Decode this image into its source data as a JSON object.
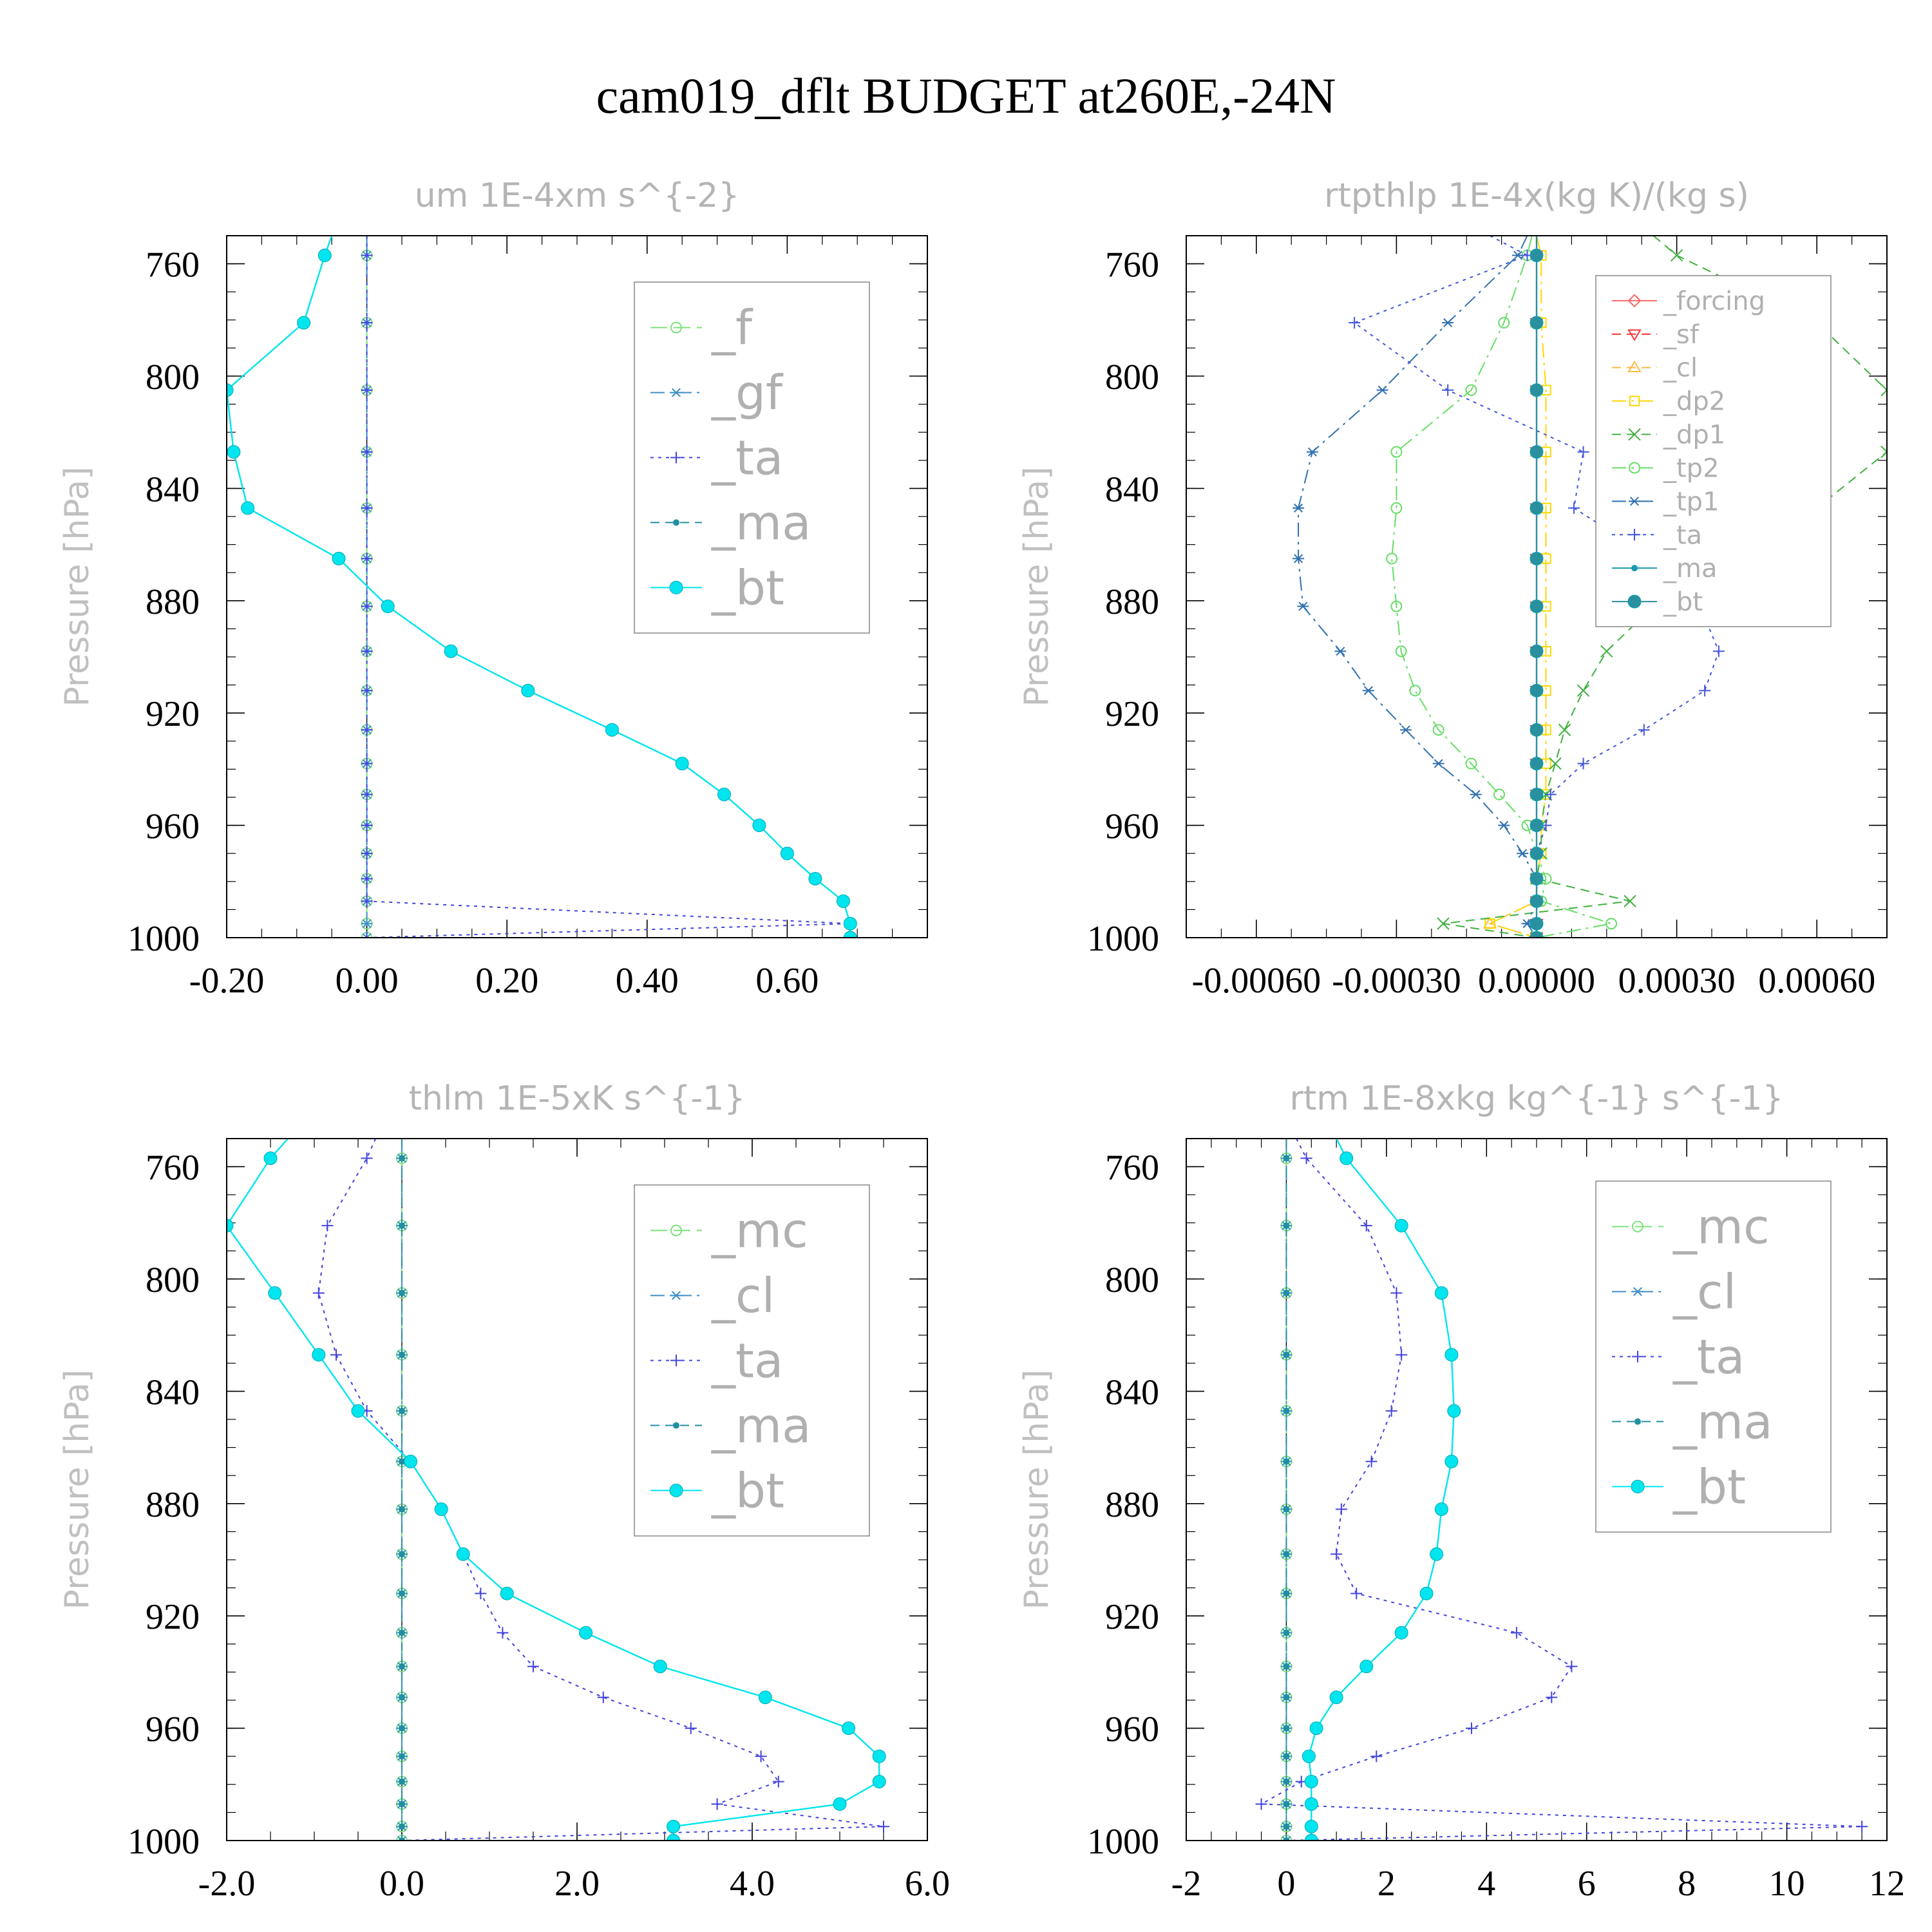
{
  "title": "cam019_dflt  BUDGET at260E,-24N",
  "chart_data": [
    {
      "type": "line",
      "title": "um   1E-4xm s^{-2}",
      "ylabel": "Pressure [hPa]",
      "xlim": [
        -0.2,
        0.8
      ],
      "ylim": [
        1000,
        750
      ],
      "xticks": [
        -0.2,
        0.0,
        0.2,
        0.4,
        0.6
      ],
      "xticklabels": [
        "-0.20",
        "0.00",
        "0.20",
        "0.40",
        "0.60"
      ],
      "yticks": [
        760,
        800,
        840,
        880,
        920,
        960,
        1000
      ],
      "yticklabels": [
        "760",
        "800",
        "840",
        "880",
        "920",
        "960",
        "1000"
      ],
      "y": [
        750,
        757,
        781,
        805,
        827,
        847,
        865,
        882,
        898,
        912,
        926,
        938,
        949,
        960,
        970,
        979,
        987,
        995,
        1000
      ],
      "legend_size": "large",
      "series": [
        {
          "name": "_f",
          "color": "#7be27b",
          "dash": "long",
          "marker": "circle-open",
          "x": [
            0,
            0,
            0,
            0,
            0,
            0,
            0,
            0,
            0,
            0,
            0,
            0,
            0,
            0,
            0,
            0,
            0,
            0,
            0
          ]
        },
        {
          "name": "_gf",
          "color": "#3f8fc8",
          "dash": "dashdot",
          "marker": "star",
          "x": [
            0,
            0,
            0,
            0,
            0,
            0,
            0,
            0,
            0,
            0,
            0,
            0,
            0,
            0,
            0,
            0,
            0,
            0,
            0
          ]
        },
        {
          "name": "_ta",
          "color": "#4444dd",
          "dash": "dot",
          "marker": "plus",
          "x": [
            0,
            0,
            0,
            0,
            0,
            0,
            0,
            0,
            0,
            0,
            0,
            0,
            0,
            0,
            0,
            0,
            0,
            0.69,
            0
          ]
        },
        {
          "name": "_ma",
          "color": "#2090a0",
          "dash": "dash",
          "marker": "dot",
          "x": [
            -0.05,
            -0.06,
            -0.09,
            -0.2,
            -0.19,
            -0.17,
            -0.04,
            0.03,
            0.12,
            0.23,
            0.35,
            0.45,
            0.51,
            0.56,
            0.6,
            0.64,
            0.68,
            0.69,
            0.69
          ]
        },
        {
          "name": "_bt",
          "color": "#00e5ee",
          "dash": "solid",
          "marker": "dot-large",
          "x": [
            -0.05,
            -0.06,
            -0.09,
            -0.2,
            -0.19,
            -0.17,
            -0.04,
            0.03,
            0.12,
            0.23,
            0.35,
            0.45,
            0.51,
            0.56,
            0.6,
            0.64,
            0.68,
            0.69,
            0.69
          ]
        }
      ]
    },
    {
      "type": "line",
      "title": "rtpthlp   1E-4x(kg K)/(kg s)",
      "ylabel": "Pressure [hPa]",
      "xlim": [
        -0.00075,
        0.00075
      ],
      "ylim": [
        1000,
        750
      ],
      "xticks": [
        -0.0006,
        -0.0003,
        0.0,
        0.0003,
        0.0006
      ],
      "xticklabels": [
        "-0.00060",
        "-0.00030",
        "0.00000",
        "0.00030",
        "0.00060"
      ],
      "yticks": [
        760,
        800,
        840,
        880,
        920,
        960,
        1000
      ],
      "yticklabels": [
        "760",
        "800",
        "840",
        "880",
        "920",
        "960",
        "1000"
      ],
      "y": [
        750,
        757,
        781,
        805,
        827,
        847,
        865,
        882,
        898,
        912,
        926,
        938,
        949,
        960,
        970,
        979,
        987,
        995,
        1000
      ],
      "legend_size": "small",
      "series": [
        {
          "name": "_forcing",
          "color": "#ff6666",
          "dash": "solid",
          "marker": "diamond",
          "x": [
            0,
            0,
            0,
            0,
            0,
            0,
            0,
            0,
            0,
            0,
            0,
            0,
            0,
            0,
            0,
            0,
            0,
            0,
            0
          ]
        },
        {
          "name": "_sf",
          "color": "#ff3333",
          "dash": "dash",
          "marker": "triangle-down",
          "x": [
            0,
            0,
            0,
            0,
            0,
            0,
            0,
            0,
            0,
            0,
            0,
            0,
            0,
            0,
            0,
            0,
            0,
            0,
            0
          ]
        },
        {
          "name": "_cl",
          "color": "#ffbb44",
          "dash": "dash",
          "marker": "triangle-up",
          "x": [
            0,
            0,
            0,
            0,
            0,
            0,
            0,
            0,
            0,
            0,
            0,
            0,
            0,
            0,
            0,
            0,
            0,
            -0.0001,
            0
          ]
        },
        {
          "name": "_dp2",
          "color": "#ffd700",
          "dash": "dashdot",
          "marker": "square",
          "x": [
            0,
            1e-05,
            1e-05,
            2e-05,
            2e-05,
            2e-05,
            2e-05,
            2e-05,
            2e-05,
            2e-05,
            2e-05,
            2e-05,
            2e-05,
            1e-05,
            1e-05,
            0,
            0,
            -0.0001,
            0
          ]
        },
        {
          "name": "_dp1",
          "color": "#40b040",
          "dash": "dash",
          "marker": "x",
          "x": [
            0.00025,
            0.0003,
            0.0006,
            0.00075,
            0.00075,
            0.0006,
            0.00045,
            0.00025,
            0.00015,
            0.0001,
            6e-05,
            4e-05,
            2e-05,
            1e-05,
            1e-05,
            0,
            0.0002,
            -0.0002,
            0
          ]
        },
        {
          "name": "_tp2",
          "color": "#66dd66",
          "dash": "dashdot",
          "marker": "circle-open",
          "x": [
            -1e-05,
            -2e-05,
            -7e-05,
            -0.00014,
            -0.0003,
            -0.0003,
            -0.00031,
            -0.0003,
            -0.00029,
            -0.00026,
            -0.00021,
            -0.00014,
            -8e-05,
            -2e-05,
            0,
            2e-05,
            1e-05,
            0.00016,
            0
          ]
        },
        {
          "name": "_tp1",
          "color": "#3070b0",
          "dash": "dashdot",
          "marker": "star",
          "x": [
            -2e-05,
            -4e-05,
            -0.00019,
            -0.00033,
            -0.00048,
            -0.00051,
            -0.00051,
            -0.0005,
            -0.00042,
            -0.00036,
            -0.00028,
            -0.00021,
            -0.00013,
            -7e-05,
            -3e-05,
            0,
            0,
            -2e-05,
            0
          ]
        },
        {
          "name": "_ta",
          "color": "#4455dd",
          "dash": "dot",
          "marker": "plus",
          "x": [
            -0.0001,
            -2e-05,
            -0.00039,
            -0.00019,
            0.0001,
            8e-05,
            0.00025,
            0.00035,
            0.00039,
            0.00036,
            0.00023,
            0.0001,
            3e-05,
            2e-05,
            0,
            0,
            0,
            0,
            0
          ]
        },
        {
          "name": "_ma",
          "color": "#1a9ab0",
          "dash": "solid",
          "marker": "dot",
          "x": [
            0,
            0,
            0,
            0,
            0,
            0,
            0,
            0,
            0,
            0,
            0,
            0,
            0,
            0,
            0,
            0,
            0,
            0,
            0
          ]
        },
        {
          "name": "_bt",
          "color": "#2a8f9f",
          "dash": "solid",
          "marker": "dot-large",
          "x": [
            0,
            0,
            0,
            0,
            0,
            0,
            0,
            0,
            0,
            0,
            0,
            0,
            0,
            0,
            0,
            0,
            0,
            0,
            0
          ]
        }
      ]
    },
    {
      "type": "line",
      "title": "thlm   1E-5xK s^{-1}",
      "ylabel": "Pressure [hPa]",
      "xlim": [
        -2.0,
        6.0
      ],
      "ylim": [
        1000,
        750
      ],
      "xticks": [
        -2.0,
        0.0,
        2.0,
        4.0,
        6.0
      ],
      "xticklabels": [
        "-2.0",
        "0.0",
        "2.0",
        "4.0",
        "6.0"
      ],
      "yticks": [
        760,
        800,
        840,
        880,
        920,
        960,
        1000
      ],
      "yticklabels": [
        "760",
        "800",
        "840",
        "880",
        "920",
        "960",
        "1000"
      ],
      "y": [
        750,
        757,
        781,
        805,
        827,
        847,
        865,
        882,
        898,
        912,
        926,
        938,
        949,
        960,
        970,
        979,
        987,
        995,
        1000
      ],
      "legend_size": "large",
      "series": [
        {
          "name": "_mc",
          "color": "#7be27b",
          "dash": "long",
          "marker": "circle-open",
          "x": [
            0,
            0,
            0,
            0,
            0,
            0,
            0,
            0,
            0,
            0,
            0,
            0,
            0,
            0,
            0,
            0,
            0,
            0,
            0
          ]
        },
        {
          "name": "_cl",
          "color": "#3f8fc8",
          "dash": "dashdot",
          "marker": "star",
          "x": [
            0,
            0,
            0,
            0,
            0,
            0,
            0,
            0,
            0,
            0,
            0,
            0,
            0,
            0,
            0,
            0,
            0,
            0,
            0
          ]
        },
        {
          "name": "_ta",
          "color": "#4444dd",
          "dash": "dot",
          "marker": "plus",
          "x": [
            -0.3,
            -0.4,
            -0.85,
            -0.95,
            -0.75,
            -0.4,
            0.1,
            0.45,
            0.7,
            0.9,
            1.15,
            1.5,
            2.3,
            3.3,
            4.1,
            4.3,
            3.6,
            5.5,
            0
          ]
        },
        {
          "name": "_ma",
          "color": "#2090a0",
          "dash": "dash",
          "marker": "dot",
          "x": [
            0,
            0,
            0,
            0,
            0,
            0,
            0,
            0,
            0,
            0,
            0,
            0,
            0,
            0,
            0,
            0,
            0,
            0,
            0
          ]
        },
        {
          "name": "_bt",
          "color": "#00e5ee",
          "dash": "solid",
          "marker": "dot-large",
          "x": [
            -1.3,
            -1.5,
            -2.0,
            -1.45,
            -0.95,
            -0.5,
            0.1,
            0.45,
            0.7,
            1.2,
            2.1,
            2.95,
            4.15,
            5.1,
            5.45,
            5.45,
            5.0,
            3.1,
            3.1
          ]
        }
      ]
    },
    {
      "type": "line",
      "title": "rtm   1E-8xkg kg^{-1} s^{-1}",
      "ylabel": "Pressure [hPa]",
      "xlim": [
        -2,
        12
      ],
      "ylim": [
        1000,
        750
      ],
      "xticks": [
        -2,
        0,
        2,
        4,
        6,
        8,
        10,
        12
      ],
      "xticklabels": [
        "-2",
        "0",
        "2",
        "4",
        "6",
        "8",
        "10",
        "12"
      ],
      "yticks": [
        760,
        800,
        840,
        880,
        920,
        960,
        1000
      ],
      "yticklabels": [
        "760",
        "800",
        "840",
        "880",
        "920",
        "960",
        "1000"
      ],
      "y": [
        750,
        757,
        781,
        805,
        827,
        847,
        865,
        882,
        898,
        912,
        926,
        938,
        949,
        960,
        970,
        979,
        987,
        995,
        1000
      ],
      "legend_size": "large",
      "series": [
        {
          "name": "_mc",
          "color": "#7be27b",
          "dash": "long",
          "marker": "circle-open",
          "x": [
            0,
            0,
            0,
            0,
            0,
            0,
            0,
            0,
            0,
            0,
            0,
            0,
            0,
            0,
            0,
            0,
            0,
            0,
            0
          ]
        },
        {
          "name": "_cl",
          "color": "#3f8fc8",
          "dash": "dashdot",
          "marker": "star",
          "x": [
            0,
            0,
            0,
            0,
            0,
            0,
            0,
            0,
            0,
            0,
            0,
            0,
            0,
            0,
            0,
            0,
            0,
            0,
            0
          ]
        },
        {
          "name": "_ta",
          "color": "#4444dd",
          "dash": "dot",
          "marker": "plus",
          "x": [
            0.2,
            0.4,
            1.6,
            2.2,
            2.3,
            2.1,
            1.7,
            1.1,
            1.0,
            1.4,
            4.6,
            5.7,
            5.3,
            3.7,
            1.8,
            0.3,
            -0.5,
            11.5,
            0
          ]
        },
        {
          "name": "_ma",
          "color": "#2090a0",
          "dash": "dash",
          "marker": "dot",
          "x": [
            0,
            0,
            0,
            0,
            0,
            0,
            0,
            0,
            0,
            0,
            0,
            0,
            0,
            0,
            0,
            0,
            0,
            0,
            0
          ]
        },
        {
          "name": "_bt",
          "color": "#00e5ee",
          "dash": "solid",
          "marker": "dot-large",
          "x": [
            1.0,
            1.2,
            2.3,
            3.1,
            3.3,
            3.35,
            3.3,
            3.1,
            3.0,
            2.8,
            2.3,
            1.6,
            1.0,
            0.6,
            0.45,
            0.5,
            0.5,
            0.5,
            0.5
          ]
        }
      ]
    }
  ]
}
